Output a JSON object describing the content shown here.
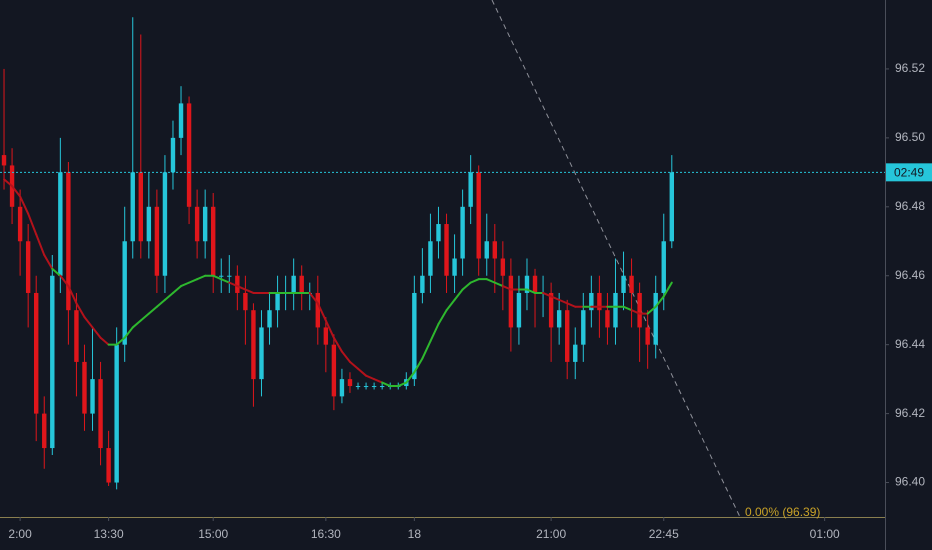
{
  "chart_data": {
    "type": "candlestick",
    "categories": [
      null,
      null,
      "2:00",
      null,
      null,
      null,
      null,
      null,
      null,
      null,
      null,
      null,
      null,
      "13:30",
      null,
      null,
      null,
      null,
      null,
      null,
      null,
      null,
      null,
      null,
      null,
      null,
      "15:00",
      null,
      null,
      null,
      null,
      null,
      null,
      null,
      null,
      null,
      null,
      null,
      null,
      null,
      "16:30",
      null,
      null,
      null,
      null,
      null,
      null,
      null,
      null,
      null,
      null,
      "18",
      null,
      null,
      null,
      null,
      null,
      null,
      null,
      null,
      null,
      null,
      null,
      null,
      null,
      null,
      null,
      null,
      "21:00",
      null,
      null,
      null,
      null,
      null,
      null,
      null,
      null,
      null,
      null,
      null,
      null,
      null,
      "22:45",
      null,
      null,
      null,
      null,
      null,
      null,
      null,
      null,
      null,
      null,
      null,
      null,
      null,
      null,
      null,
      null,
      null,
      null,
      null,
      "01:00",
      null,
      null,
      null,
      null,
      null,
      null,
      null
    ],
    "open": [
      96.495,
      96.492,
      96.48,
      96.47,
      96.455,
      96.42,
      96.41,
      96.46,
      96.49,
      96.45,
      96.435,
      96.42,
      96.43,
      96.41,
      96.4,
      96.44,
      96.47,
      96.49,
      96.47,
      96.48,
      96.46,
      96.49,
      96.5,
      96.51,
      96.48,
      96.47,
      96.48,
      96.46,
      96.46,
      96.46,
      96.455,
      96.45,
      96.43,
      96.445,
      96.45,
      96.455,
      96.455,
      96.46,
      96.455,
      96.455,
      96.445,
      96.44,
      96.425,
      96.43,
      96.428,
      96.428,
      96.428,
      96.428,
      96.428,
      96.428,
      96.428,
      96.43,
      96.455,
      96.46,
      96.47,
      96.475,
      96.46,
      96.465,
      96.48,
      96.49,
      96.465,
      96.47,
      96.465,
      96.46,
      96.445,
      96.455,
      96.46,
      96.455,
      96.455,
      96.445,
      96.45,
      96.435,
      96.44,
      96.45,
      96.455,
      96.45,
      96.445,
      96.455,
      96.46,
      96.455,
      96.445,
      96.44,
      96.455,
      96.47,
      null,
      null,
      null,
      null,
      null,
      null,
      null,
      null,
      null,
      null,
      null,
      null,
      null,
      null,
      null,
      null,
      null,
      null,
      null,
      null,
      null,
      null,
      null,
      null,
      null,
      null
    ],
    "high": [
      96.52,
      96.497,
      96.485,
      96.475,
      96.46,
      96.425,
      96.466,
      96.5,
      96.493,
      96.455,
      96.44,
      96.445,
      96.435,
      96.415,
      96.445,
      96.48,
      96.535,
      96.53,
      96.49,
      96.485,
      96.495,
      96.505,
      96.515,
      96.512,
      96.485,
      96.485,
      96.484,
      96.465,
      96.466,
      96.463,
      96.46,
      96.452,
      96.45,
      96.455,
      96.46,
      96.46,
      96.465,
      96.463,
      96.458,
      96.46,
      96.448,
      96.443,
      96.433,
      96.432,
      96.429,
      96.429,
      96.429,
      96.429,
      96.429,
      96.429,
      96.432,
      96.46,
      96.468,
      96.478,
      96.48,
      96.478,
      96.472,
      96.485,
      96.495,
      96.492,
      96.478,
      96.475,
      96.47,
      96.465,
      96.46,
      96.465,
      96.462,
      96.46,
      96.458,
      96.455,
      96.453,
      96.445,
      96.455,
      96.46,
      96.46,
      96.455,
      96.465,
      96.467,
      96.465,
      96.458,
      96.45,
      96.46,
      96.478,
      96.495,
      null,
      null,
      null,
      null,
      null,
      null,
      null,
      null,
      null,
      null,
      null,
      null,
      null,
      null,
      null,
      null,
      null,
      null,
      null,
      null,
      null,
      null,
      null,
      null,
      null,
      null
    ],
    "low": [
      96.485,
      96.475,
      96.46,
      96.445,
      96.412,
      96.404,
      96.408,
      96.455,
      96.44,
      96.425,
      96.415,
      96.415,
      96.405,
      96.399,
      96.398,
      96.435,
      96.465,
      96.465,
      96.465,
      96.455,
      96.455,
      96.485,
      96.495,
      96.475,
      96.465,
      96.465,
      96.455,
      96.455,
      96.455,
      96.45,
      96.44,
      96.422,
      96.425,
      96.44,
      96.445,
      96.45,
      96.45,
      96.45,
      96.45,
      96.44,
      96.432,
      96.421,
      96.423,
      96.426,
      96.427,
      96.427,
      96.427,
      96.427,
      96.427,
      96.427,
      96.427,
      96.428,
      96.452,
      96.455,
      96.465,
      96.455,
      96.455,
      96.46,
      96.475,
      96.46,
      96.46,
      96.455,
      96.45,
      96.438,
      96.44,
      96.45,
      96.445,
      96.448,
      96.435,
      96.44,
      96.43,
      96.43,
      96.435,
      96.445,
      96.442,
      96.44,
      96.44,
      96.45,
      96.445,
      96.435,
      96.433,
      96.436,
      96.45,
      96.468,
      null,
      null,
      null,
      null,
      null,
      null,
      null,
      null,
      null,
      null,
      null,
      null,
      null,
      null,
      null,
      null,
      null,
      null,
      null,
      null,
      null,
      null,
      null,
      null,
      null,
      null
    ],
    "close": [
      96.492,
      96.48,
      96.47,
      96.455,
      96.42,
      96.41,
      96.46,
      96.49,
      96.45,
      96.435,
      96.42,
      96.43,
      96.41,
      96.4,
      96.44,
      96.47,
      96.49,
      96.47,
      96.48,
      96.46,
      96.49,
      96.5,
      96.51,
      96.48,
      96.47,
      96.48,
      96.46,
      96.46,
      96.46,
      96.455,
      96.45,
      96.43,
      96.445,
      96.45,
      96.455,
      96.455,
      96.46,
      96.455,
      96.455,
      96.445,
      96.44,
      96.425,
      96.43,
      96.428,
      96.428,
      96.428,
      96.428,
      96.428,
      96.428,
      96.428,
      96.43,
      96.455,
      96.46,
      96.47,
      96.475,
      96.46,
      96.465,
      96.48,
      96.49,
      96.465,
      96.47,
      96.465,
      96.46,
      96.445,
      96.455,
      96.46,
      96.455,
      96.455,
      96.445,
      96.45,
      96.435,
      96.44,
      96.45,
      96.455,
      96.45,
      96.445,
      96.455,
      96.46,
      96.455,
      96.445,
      96.44,
      96.455,
      96.47,
      96.49,
      null,
      null,
      null,
      null,
      null,
      null,
      null,
      null,
      null,
      null,
      null,
      null,
      null,
      null,
      null,
      null,
      null,
      null,
      null,
      null,
      null,
      null,
      null,
      null,
      null,
      null
    ],
    "ma": [
      96.488,
      96.486,
      96.483,
      96.478,
      96.472,
      96.466,
      96.462,
      96.46,
      96.457,
      96.452,
      96.448,
      96.445,
      96.442,
      96.44,
      96.44,
      96.442,
      96.445,
      96.447,
      96.449,
      96.451,
      96.453,
      96.455,
      96.457,
      96.458,
      96.459,
      96.46,
      96.46,
      96.459,
      96.458,
      96.457,
      96.456,
      96.455,
      96.455,
      96.455,
      96.455,
      96.455,
      96.455,
      96.455,
      96.455,
      96.452,
      96.447,
      96.442,
      96.438,
      96.435,
      96.433,
      96.431,
      96.43,
      96.429,
      96.428,
      96.428,
      96.429,
      96.432,
      96.436,
      96.441,
      96.446,
      96.45,
      96.453,
      96.456,
      96.458,
      96.459,
      96.459,
      96.458,
      96.457,
      96.456,
      96.456,
      96.456,
      96.455,
      96.455,
      96.454,
      96.453,
      96.452,
      96.451,
      96.451,
      96.451,
      96.451,
      96.451,
      96.451,
      96.451,
      96.45,
      96.449,
      96.449,
      96.451,
      96.454,
      96.458,
      null,
      null,
      null,
      null,
      null,
      null,
      null,
      null,
      null,
      null,
      null,
      null,
      null,
      null,
      null,
      null,
      null,
      null,
      null,
      null,
      null,
      null,
      null,
      null,
      null,
      null
    ],
    "up_color": "#26c6da",
    "down_color": "#e0161b",
    "ma_up_color": "#2eb82e",
    "ma_down_color": "#b3121b",
    "ylim": [
      96.39,
      96.54
    ],
    "yticks": [
      {
        "value": 96.4,
        "label": "96.40"
      },
      96.42,
      96.44,
      96.46,
      96.48,
      {
        "value": 96.5,
        "label": "96.50"
      },
      96.52
    ],
    "price_line": 96.49,
    "countdown": "02:49",
    "annotation": "0.00% (96.39)",
    "grid": false
  }
}
